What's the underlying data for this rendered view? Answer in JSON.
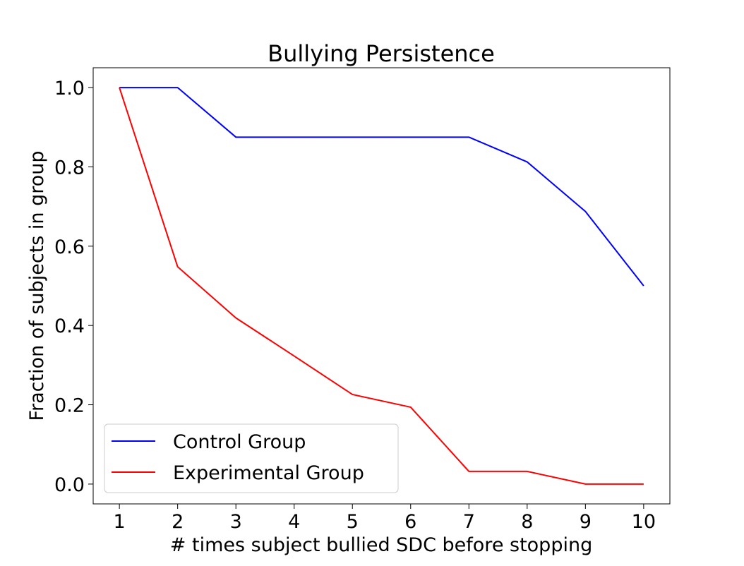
{
  "chart_data": {
    "type": "line",
    "title": "Bullying Persistence",
    "xlabel": "# times subject bullied SDC before stopping",
    "ylabel": "Fraction of subjects in group",
    "x": [
      1,
      2,
      3,
      4,
      5,
      6,
      7,
      8,
      9,
      10
    ],
    "xticks": [
      "1",
      "2",
      "3",
      "4",
      "5",
      "6",
      "7",
      "8",
      "9",
      "10"
    ],
    "yticks": [
      "0.0",
      "0.2",
      "0.4",
      "0.6",
      "0.8",
      "1.0"
    ],
    "xlim": [
      0.55,
      10.45
    ],
    "ylim": [
      -0.05,
      1.05
    ],
    "grid": false,
    "legend_position": "lower-left",
    "series": [
      {
        "name": "Control Group",
        "color": "#0000ff",
        "values": [
          1.0,
          1.0,
          0.875,
          0.875,
          0.875,
          0.875,
          0.875,
          0.8125,
          0.6875,
          0.5
        ]
      },
      {
        "name": "Experimental Group",
        "color": "#ff0000",
        "values": [
          1.0,
          0.548,
          0.419,
          0.323,
          0.226,
          0.194,
          0.032,
          0.032,
          0.0,
          0.0
        ]
      }
    ]
  }
}
